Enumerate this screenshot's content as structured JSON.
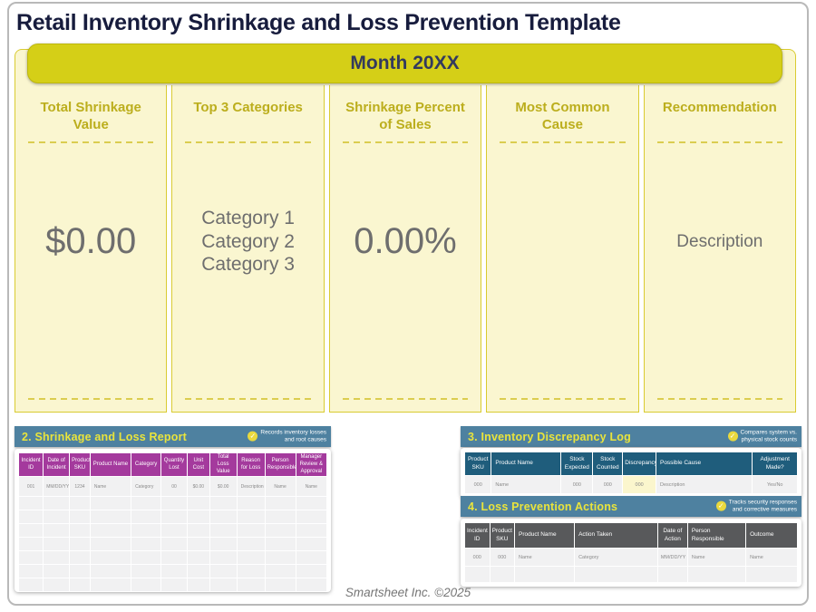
{
  "page": {
    "title": "Retail Inventory Shrinkage and Loss Prevention Template",
    "banner": "Month 20XX",
    "footer": "Smartsheet Inc. ©2025"
  },
  "icons": {
    "check": "✓"
  },
  "colors": {
    "accent_yellow": "#d5cf17",
    "cream_panel": "#faf6d0",
    "olive_heading": "#bcae1d",
    "teal_section_bar": "#4e81a0",
    "section_bar_text": "#e9e43c",
    "magenta_table_header": "#a43a9d",
    "dark_teal_table_header": "#1f5d7c",
    "gray_table_header": "#58595b",
    "discrepancy_highlight": "#fbf6cd",
    "title_navy": "#171c3d",
    "value_gray": "#6e6e6e"
  },
  "summary_cards": [
    {
      "heading": "Total Shrinkage Value",
      "value": "$0.00"
    },
    {
      "heading": "Top 3 Categories",
      "lines": [
        "Category 1",
        "Category 2",
        "Category 3"
      ]
    },
    {
      "heading": "Shrinkage Percent of Sales",
      "value": "0.00%"
    },
    {
      "heading": "Most Common Cause",
      "value": ""
    },
    {
      "heading": "Recommendation",
      "value": "Description"
    }
  ],
  "tables": {
    "shrinkage_report": {
      "title": "2. Shrinkage and Loss Report",
      "badge": [
        "Records inventory losses",
        "and root causes"
      ],
      "columns": [
        "Incident ID",
        "Date of Incident",
        "Product SKU",
        "Product Name",
        "Category",
        "Quantity Lost",
        "Unit Cost",
        "Total Loss Value",
        "Reason for Loss",
        "Person Responsible",
        "Manager Review & Approval"
      ],
      "row": [
        "001",
        "MM/DD/YY",
        "1234",
        "Name",
        "Category",
        "00",
        "$0.00",
        "$0.00",
        "Description",
        "Name",
        "Name"
      ],
      "empty_rows": 7
    },
    "discrepancy_log": {
      "title": "3. Inventory Discrepancy Log",
      "badge": [
        "Compares system vs.",
        "physical stock counts"
      ],
      "columns": [
        "Product SKU",
        "Product Name",
        "Stock Expected",
        "Stock Counted",
        "Discrepancy",
        "Possible Cause",
        "Adjustment Made?"
      ],
      "row": [
        "000",
        "Name",
        "000",
        "000",
        "000",
        "Description",
        "Yes/No"
      ],
      "empty_rows": 0
    },
    "loss_prevention": {
      "title": "4. Loss Prevention Actions",
      "badge": [
        "Tracks security responses",
        "and corrective measures"
      ],
      "columns": [
        "Incident ID",
        "Product SKU",
        "Product Name",
        "Action Taken",
        "Date of Action",
        "Person Responsible",
        "Outcome"
      ],
      "row": [
        "000",
        "000",
        "Name",
        "Category",
        "MM/DD/YY",
        "Name",
        "Name"
      ],
      "empty_rows": 1
    }
  }
}
